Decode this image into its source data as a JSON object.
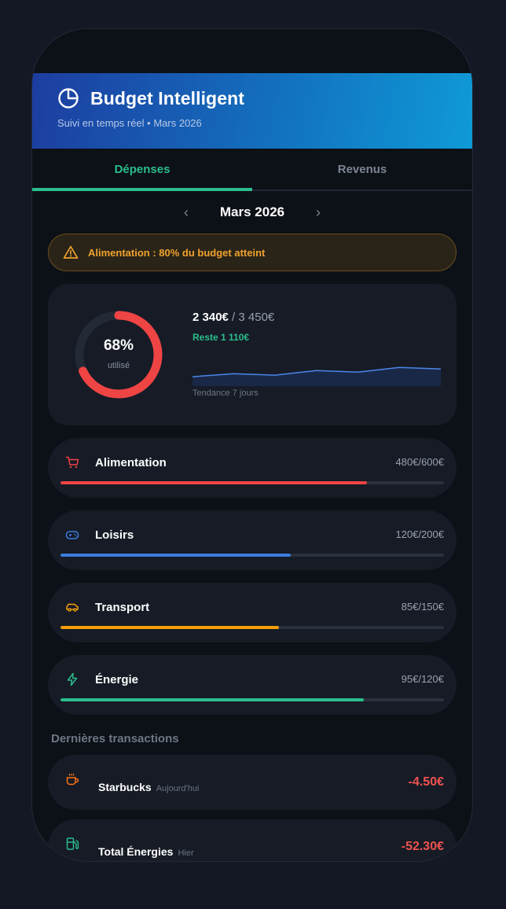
{
  "header": {
    "title": "Budget Intelligent",
    "subtitle": "Suivi en temps réel • Mars 2026",
    "icon": "pie-chart-icon",
    "gradient_colors": [
      "#1d3da0",
      "#0f9ad6"
    ]
  },
  "tabs": [
    {
      "label": "Dépenses",
      "active": true
    },
    {
      "label": "Revenus",
      "active": false
    }
  ],
  "month_nav": {
    "label": "Mars 2026",
    "prev_icon": "chevron-left-icon",
    "next_icon": "chevron-right-icon"
  },
  "alert": {
    "text": "Alimentation : 80% du budget atteint",
    "icon": "warning-icon",
    "color": "#f0a22e"
  },
  "summary": {
    "percent_label": "68%",
    "percent_value": 0.68,
    "percent_caption": "utilisé",
    "spent": "2 340€",
    "total": " / 3 450€",
    "remaining": "Reste 1 110€",
    "trend_caption": "Tendance 7 jours",
    "trend_values": [
      3,
      4,
      3.5,
      5,
      4.5,
      6,
      5.5
    ],
    "donut_color": "#ef4444",
    "trend_color": "#4a86e8"
  },
  "categories": [
    {
      "name": "Alimentation",
      "amount": "480€/600€",
      "progress": 0.8,
      "color": "#ef4444",
      "icon": "cart-icon"
    },
    {
      "name": "Loisirs",
      "amount": "120€/200€",
      "progress": 0.6,
      "color": "#3b7ddd",
      "icon": "gamepad-icon"
    },
    {
      "name": "Transport",
      "amount": "85€/150€",
      "progress": 0.57,
      "color": "#f59e0b",
      "icon": "car-icon"
    },
    {
      "name": "Énergie",
      "amount": "95€/120€",
      "progress": 0.79,
      "color": "#2bbd8b",
      "icon": "lightning-icon"
    }
  ],
  "transactions_title": "Dernières transactions",
  "transactions": [
    {
      "name": "Starbucks",
      "date": "Aujourd'hui",
      "amount": "-4.50€",
      "icon": "coffee-icon",
      "icon_color": "#f97316"
    },
    {
      "name": "Total Énergies",
      "date": "Hier",
      "amount": "-52.30€",
      "icon": "fuel-icon",
      "icon_color": "#2bbd8b"
    }
  ]
}
